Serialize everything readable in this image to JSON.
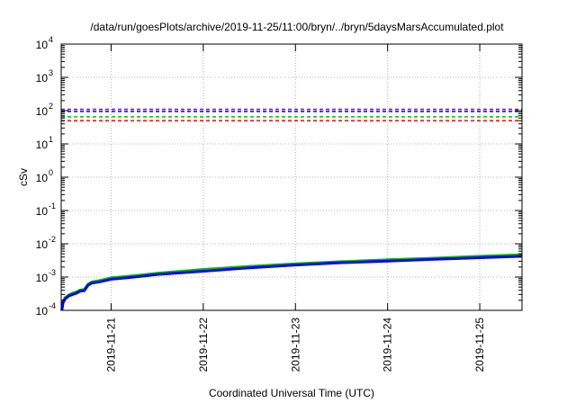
{
  "chart_data": {
    "type": "line",
    "title": "/data/run/goesPlots/archive/2019-11-25/11:00/bryn/../bryn/5daysMarsAccumulated.plot",
    "xlabel": "Coordinated Universal Time (UTC)",
    "ylabel": "cSv",
    "yscale": "log",
    "ylim": [
      0.0001,
      10000
    ],
    "xlim": [
      "2019-11-20T11:00",
      "2019-11-25T11:00"
    ],
    "grid": true,
    "y_ticks": [
      {
        "base": "10",
        "exp": "-4"
      },
      {
        "base": "10",
        "exp": "-3"
      },
      {
        "base": "10",
        "exp": "-2"
      },
      {
        "base": "10",
        "exp": "-1"
      },
      {
        "base": "10",
        "exp": "0"
      },
      {
        "base": "10",
        "exp": "1"
      },
      {
        "base": "10",
        "exp": "2"
      },
      {
        "base": "10",
        "exp": "3"
      },
      {
        "base": "10",
        "exp": "4"
      }
    ],
    "x_ticks": [
      "2019-11-21",
      "2019-11-22",
      "2019-11-23",
      "2019-11-24",
      "2019-11-25"
    ],
    "x_tick_values": [
      "2019-11-21T00:00",
      "2019-11-22T00:00",
      "2019-11-23T00:00",
      "2019-11-24T00:00",
      "2019-11-25T00:00"
    ],
    "reference_lines": [
      {
        "value": 110,
        "color": "#9400d3",
        "style": "dashed"
      },
      {
        "value": 95,
        "color": "#0000ff",
        "style": "dashed"
      },
      {
        "value": 65,
        "color": "#00c000",
        "style": "dashed"
      },
      {
        "value": 50,
        "color": "#ff0000",
        "style": "dashed"
      }
    ],
    "series": [
      {
        "color": "#00c000",
        "width": 3,
        "x": [
          "2019-11-20T11:10",
          "2019-11-20T11:30",
          "2019-11-20T12:00",
          "2019-11-20T13:00",
          "2019-11-20T14:00",
          "2019-11-20T15:00",
          "2019-11-20T16:00",
          "2019-11-20T17:00",
          "2019-11-20T18:00",
          "2019-11-20T19:00",
          "2019-11-20T21:00",
          "2019-11-21T00:00",
          "2019-11-21T06:00",
          "2019-11-21T12:00",
          "2019-11-22T00:00",
          "2019-11-22T12:00",
          "2019-11-23T00:00",
          "2019-11-23T12:00",
          "2019-11-24T00:00",
          "2019-11-24T12:00",
          "2019-11-25T00:00",
          "2019-11-25T11:00"
        ],
        "y": [
          0.0001,
          0.00019,
          0.00024,
          0.00029,
          0.00033,
          0.00036,
          0.00041,
          0.00042,
          0.00062,
          0.00072,
          0.00079,
          0.00095,
          0.0011,
          0.0013,
          0.0017,
          0.0021,
          0.0025,
          0.0029,
          0.0033,
          0.0037,
          0.0042,
          0.0047
        ]
      },
      {
        "color": "#0000ff",
        "width": 3,
        "x": [
          "2019-11-20T11:10",
          "2019-11-20T11:30",
          "2019-11-20T12:00",
          "2019-11-20T13:00",
          "2019-11-20T14:00",
          "2019-11-20T15:00",
          "2019-11-20T16:00",
          "2019-11-20T17:00",
          "2019-11-20T18:00",
          "2019-11-20T19:00",
          "2019-11-20T21:00",
          "2019-11-21T00:00",
          "2019-11-21T06:00",
          "2019-11-21T12:00",
          "2019-11-22T00:00",
          "2019-11-22T12:00",
          "2019-11-23T00:00",
          "2019-11-23T12:00",
          "2019-11-24T00:00",
          "2019-11-24T12:00",
          "2019-11-25T00:00",
          "2019-11-25T11:00"
        ],
        "y": [
          0.0001,
          0.00017,
          0.00022,
          0.00027,
          0.0003,
          0.00033,
          0.00038,
          0.00039,
          0.00057,
          0.00066,
          0.00072,
          0.00086,
          0.001,
          0.0012,
          0.0015,
          0.0019,
          0.0023,
          0.0027,
          0.003,
          0.0034,
          0.0038,
          0.0042
        ]
      }
    ]
  }
}
